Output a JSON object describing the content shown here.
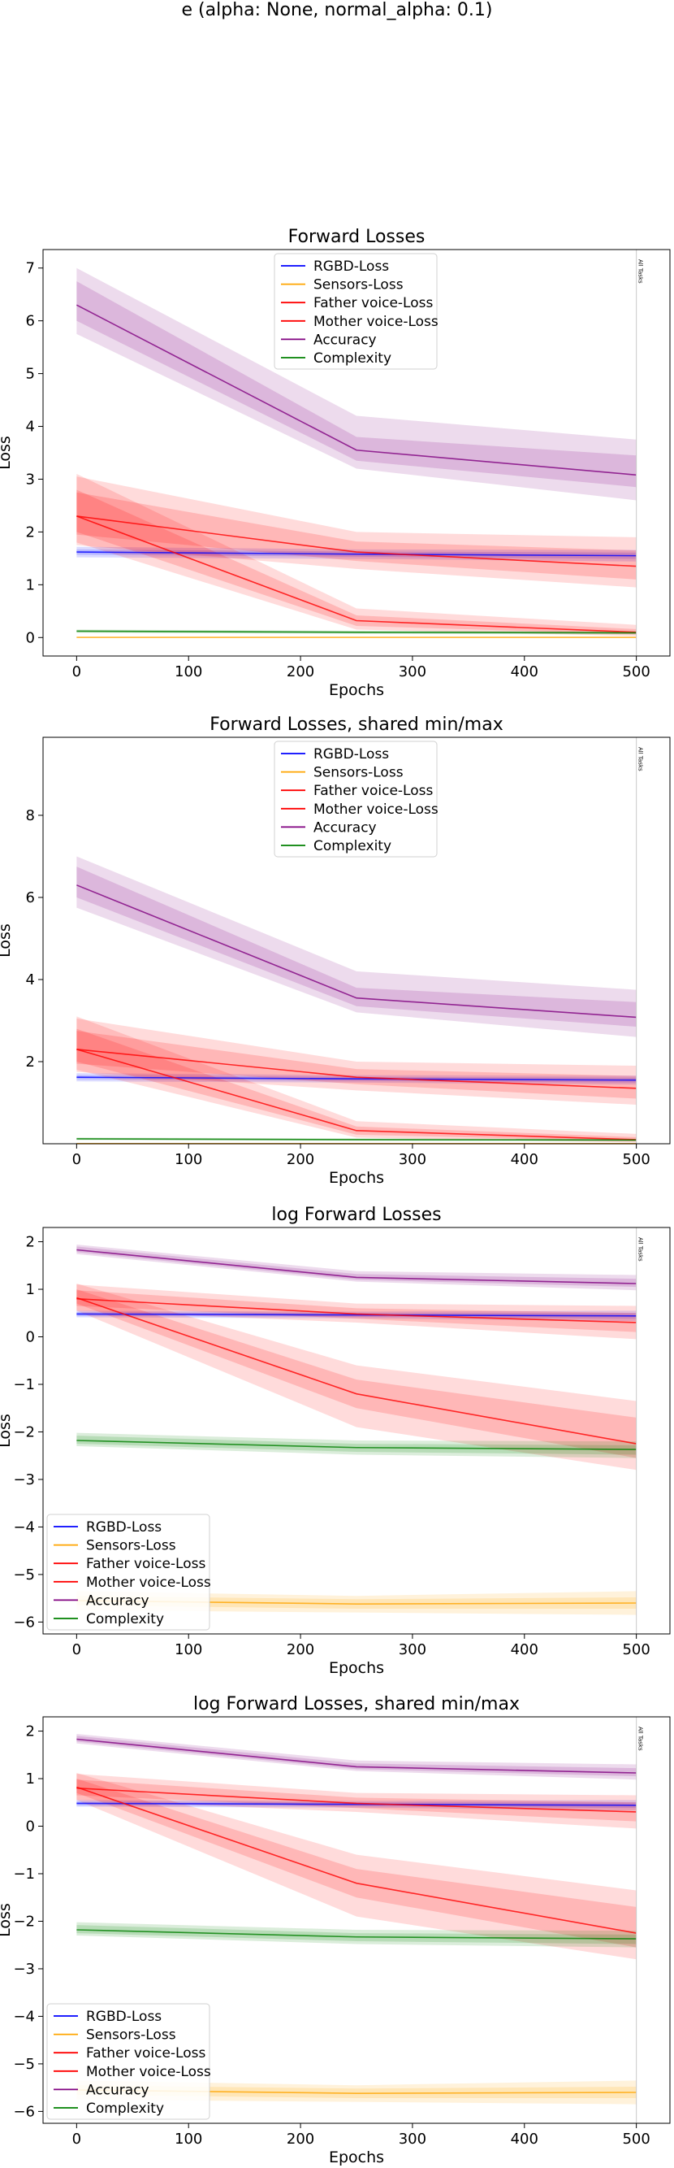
{
  "suptitle": "e (alpha: None, normal_alpha: 0.1)",
  "chart_data": [
    {
      "type": "line",
      "title": "Forward Losses",
      "xlabel": "Epochs",
      "ylabel": "Loss",
      "xlim": [
        -30,
        530
      ],
      "ylim": [
        -0.35,
        7.35
      ],
      "xticks": [
        0,
        100,
        200,
        300,
        400,
        500
      ],
      "yticks": [
        0,
        1,
        2,
        3,
        4,
        5,
        6,
        7
      ],
      "legend_position": "upper-center",
      "vline": {
        "x": 500,
        "label": "All Tasks"
      },
      "x": [
        0,
        250,
        500
      ],
      "series": [
        {
          "name": "RGBD-Loss",
          "color": "#0000ff",
          "values": [
            1.62,
            1.58,
            1.55
          ],
          "band_inner": [
            [
              1.57,
              1.67
            ],
            [
              1.53,
              1.63
            ],
            [
              1.49,
              1.61
            ]
          ],
          "band_outer": [
            [
              1.52,
              1.72
            ],
            [
              1.49,
              1.67
            ],
            [
              1.44,
              1.66
            ]
          ]
        },
        {
          "name": "Sensors-Loss",
          "color": "#ffa500",
          "values": [
            0.003,
            0.003,
            0.003
          ],
          "band_inner": [
            [
              0.002,
              0.004
            ],
            [
              0.002,
              0.004
            ],
            [
              0.002,
              0.004
            ]
          ],
          "band_outer": [
            [
              0.001,
              0.005
            ],
            [
              0.001,
              0.005
            ],
            [
              0.001,
              0.005
            ]
          ]
        },
        {
          "name": "Father voice-Loss",
          "color": "#ff0000",
          "values": [
            2.3,
            1.62,
            1.35
          ],
          "band_inner": [
            [
              1.95,
              2.75
            ],
            [
              1.45,
              1.82
            ],
            [
              1.1,
              1.65
            ]
          ],
          "band_outer": [
            [
              1.75,
              3.05
            ],
            [
              1.3,
              2.0
            ],
            [
              0.95,
              1.9
            ]
          ]
        },
        {
          "name": "Mother voice-Loss",
          "color": "#ff0000",
          "values": [
            2.3,
            0.32,
            0.1
          ],
          "band_inner": [
            [
              2.0,
              2.8
            ],
            [
              0.22,
              0.42
            ],
            [
              0.06,
              0.16
            ]
          ],
          "band_outer": [
            [
              1.8,
              3.1
            ],
            [
              0.15,
              0.55
            ],
            [
              0.03,
              0.24
            ]
          ]
        },
        {
          "name": "Accuracy",
          "color": "#800080",
          "values": [
            6.3,
            3.55,
            3.08
          ],
          "band_inner": [
            [
              6.0,
              6.75
            ],
            [
              3.35,
              3.8
            ],
            [
              2.85,
              3.45
            ]
          ],
          "band_outer": [
            [
              5.75,
              7.0
            ],
            [
              3.2,
              4.2
            ],
            [
              2.6,
              3.75
            ]
          ]
        },
        {
          "name": "Complexity",
          "color": "#008000",
          "values": [
            0.12,
            0.1,
            0.09
          ],
          "band_inner": [
            [
              0.1,
              0.14
            ],
            [
              0.08,
              0.12
            ],
            [
              0.07,
              0.11
            ]
          ],
          "band_outer": [
            [
              0.09,
              0.15
            ],
            [
              0.07,
              0.13
            ],
            [
              0.06,
              0.12
            ]
          ]
        }
      ]
    },
    {
      "type": "line",
      "title": "Forward Losses, shared min/max",
      "xlabel": "Epochs",
      "ylabel": "Loss",
      "xlim": [
        -30,
        530
      ],
      "ylim": [
        0,
        9.9
      ],
      "xticks": [
        0,
        100,
        200,
        300,
        400,
        500
      ],
      "yticks": [
        2,
        4,
        6,
        8
      ],
      "legend_position": "upper-center",
      "vline": {
        "x": 500,
        "label": "All Tasks"
      },
      "x": [
        0,
        250,
        500
      ],
      "series": [
        {
          "name": "RGBD-Loss",
          "color": "#0000ff",
          "values": [
            1.62,
            1.58,
            1.55
          ],
          "band_inner": [
            [
              1.57,
              1.67
            ],
            [
              1.53,
              1.63
            ],
            [
              1.49,
              1.61
            ]
          ],
          "band_outer": [
            [
              1.52,
              1.72
            ],
            [
              1.49,
              1.67
            ],
            [
              1.44,
              1.66
            ]
          ]
        },
        {
          "name": "Sensors-Loss",
          "color": "#ffa500",
          "values": [
            0.003,
            0.003,
            0.003
          ],
          "band_inner": [
            [
              0.002,
              0.004
            ],
            [
              0.002,
              0.004
            ],
            [
              0.002,
              0.004
            ]
          ],
          "band_outer": [
            [
              0.001,
              0.005
            ],
            [
              0.001,
              0.005
            ],
            [
              0.001,
              0.005
            ]
          ]
        },
        {
          "name": "Father voice-Loss",
          "color": "#ff0000",
          "values": [
            2.3,
            1.62,
            1.35
          ],
          "band_inner": [
            [
              1.95,
              2.75
            ],
            [
              1.45,
              1.82
            ],
            [
              1.1,
              1.65
            ]
          ],
          "band_outer": [
            [
              1.75,
              3.05
            ],
            [
              1.3,
              2.0
            ],
            [
              0.95,
              1.9
            ]
          ]
        },
        {
          "name": "Mother voice-Loss",
          "color": "#ff0000",
          "values": [
            2.3,
            0.32,
            0.1
          ],
          "band_inner": [
            [
              2.0,
              2.8
            ],
            [
              0.22,
              0.42
            ],
            [
              0.06,
              0.16
            ]
          ],
          "band_outer": [
            [
              1.8,
              3.1
            ],
            [
              0.15,
              0.55
            ],
            [
              0.03,
              0.24
            ]
          ]
        },
        {
          "name": "Accuracy",
          "color": "#800080",
          "values": [
            6.3,
            3.55,
            3.08
          ],
          "band_inner": [
            [
              6.0,
              6.75
            ],
            [
              3.35,
              3.8
            ],
            [
              2.85,
              3.45
            ]
          ],
          "band_outer": [
            [
              5.75,
              7.0
            ],
            [
              3.2,
              4.2
            ],
            [
              2.6,
              3.75
            ]
          ]
        },
        {
          "name": "Complexity",
          "color": "#008000",
          "values": [
            0.12,
            0.1,
            0.09
          ],
          "band_inner": [
            [
              0.1,
              0.14
            ],
            [
              0.08,
              0.12
            ],
            [
              0.07,
              0.11
            ]
          ],
          "band_outer": [
            [
              0.09,
              0.15
            ],
            [
              0.07,
              0.13
            ],
            [
              0.06,
              0.12
            ]
          ]
        }
      ]
    },
    {
      "type": "line",
      "title": "log Forward Losses",
      "xlabel": "Epochs",
      "ylabel": "Loss",
      "xlim": [
        -30,
        530
      ],
      "ylim": [
        -6.25,
        2.3
      ],
      "xticks": [
        0,
        100,
        200,
        300,
        400,
        500
      ],
      "yticks": [
        -6,
        -5,
        -4,
        -3,
        -2,
        -1,
        0,
        1,
        2
      ],
      "legend_position": "lower-left",
      "vline": {
        "x": 500,
        "label": "All Tasks"
      },
      "x": [
        0,
        250,
        500
      ],
      "series": [
        {
          "name": "RGBD-Loss",
          "color": "#0000ff",
          "values": [
            0.48,
            0.46,
            0.44
          ],
          "band_inner": [
            [
              0.44,
              0.52
            ],
            [
              0.42,
              0.5
            ],
            [
              0.38,
              0.5
            ]
          ],
          "band_outer": [
            [
              0.41,
              0.55
            ],
            [
              0.39,
              0.53
            ],
            [
              0.33,
              0.55
            ]
          ]
        },
        {
          "name": "Sensors-Loss",
          "color": "#ffa500",
          "values": [
            -5.55,
            -5.62,
            -5.6
          ],
          "band_inner": [
            [
              -5.65,
              -5.45
            ],
            [
              -5.72,
              -5.52
            ],
            [
              -5.72,
              -5.48
            ]
          ],
          "band_outer": [
            [
              -5.75,
              -5.35
            ],
            [
              -5.8,
              -5.45
            ],
            [
              -5.85,
              -5.35
            ]
          ]
        },
        {
          "name": "Father voice-Loss",
          "color": "#ff0000",
          "values": [
            0.8,
            0.48,
            0.3
          ],
          "band_inner": [
            [
              0.65,
              0.98
            ],
            [
              0.38,
              0.6
            ],
            [
              0.1,
              0.5
            ]
          ],
          "band_outer": [
            [
              0.55,
              1.1
            ],
            [
              0.3,
              0.7
            ],
            [
              -0.05,
              0.65
            ]
          ]
        },
        {
          "name": "Mother voice-Loss",
          "color": "#ff0000",
          "values": [
            0.82,
            -1.2,
            -2.25
          ],
          "band_inner": [
            [
              0.7,
              1.0
            ],
            [
              -1.5,
              -0.9
            ],
            [
              -2.55,
              -1.7
            ]
          ],
          "band_outer": [
            [
              0.55,
              1.12
            ],
            [
              -1.9,
              -0.6
            ],
            [
              -2.8,
              -1.35
            ]
          ]
        },
        {
          "name": "Accuracy",
          "color": "#800080",
          "values": [
            1.83,
            1.25,
            1.12
          ],
          "band_inner": [
            [
              1.78,
              1.9
            ],
            [
              1.2,
              1.32
            ],
            [
              1.05,
              1.22
            ]
          ],
          "band_outer": [
            [
              1.74,
              1.94
            ],
            [
              1.16,
              1.38
            ],
            [
              0.98,
              1.3
            ]
          ]
        },
        {
          "name": "Complexity",
          "color": "#008000",
          "values": [
            -2.18,
            -2.33,
            -2.37
          ],
          "band_inner": [
            [
              -2.25,
              -2.08
            ],
            [
              -2.42,
              -2.25
            ],
            [
              -2.48,
              -2.28
            ]
          ],
          "band_outer": [
            [
              -2.3,
              -2.02
            ],
            [
              -2.48,
              -2.18
            ],
            [
              -2.55,
              -2.2
            ]
          ]
        }
      ]
    },
    {
      "type": "line",
      "title": "log Forward Losses, shared min/max",
      "xlabel": "Epochs",
      "ylabel": "Loss",
      "xlim": [
        -30,
        530
      ],
      "ylim": [
        -6.25,
        2.3
      ],
      "xticks": [
        0,
        100,
        200,
        300,
        400,
        500
      ],
      "yticks": [
        -6,
        -5,
        -4,
        -3,
        -2,
        -1,
        0,
        1,
        2
      ],
      "legend_position": "lower-left",
      "vline": {
        "x": 500,
        "label": "All Tasks"
      },
      "x": [
        0,
        250,
        500
      ],
      "series": [
        {
          "name": "RGBD-Loss",
          "color": "#0000ff",
          "values": [
            0.48,
            0.46,
            0.44
          ],
          "band_inner": [
            [
              0.44,
              0.52
            ],
            [
              0.42,
              0.5
            ],
            [
              0.38,
              0.5
            ]
          ],
          "band_outer": [
            [
              0.41,
              0.55
            ],
            [
              0.39,
              0.53
            ],
            [
              0.33,
              0.55
            ]
          ]
        },
        {
          "name": "Sensors-Loss",
          "color": "#ffa500",
          "values": [
            -5.55,
            -5.62,
            -5.6
          ],
          "band_inner": [
            [
              -5.65,
              -5.45
            ],
            [
              -5.72,
              -5.52
            ],
            [
              -5.72,
              -5.48
            ]
          ],
          "band_outer": [
            [
              -5.75,
              -5.35
            ],
            [
              -5.8,
              -5.45
            ],
            [
              -5.85,
              -5.35
            ]
          ]
        },
        {
          "name": "Father voice-Loss",
          "color": "#ff0000",
          "values": [
            0.8,
            0.48,
            0.3
          ],
          "band_inner": [
            [
              0.65,
              0.98
            ],
            [
              0.38,
              0.6
            ],
            [
              0.1,
              0.5
            ]
          ],
          "band_outer": [
            [
              0.55,
              1.1
            ],
            [
              0.3,
              0.7
            ],
            [
              -0.05,
              0.65
            ]
          ]
        },
        {
          "name": "Mother voice-Loss",
          "color": "#ff0000",
          "values": [
            0.82,
            -1.2,
            -2.25
          ],
          "band_inner": [
            [
              0.7,
              1.0
            ],
            [
              -1.5,
              -0.9
            ],
            [
              -2.55,
              -1.7
            ]
          ],
          "band_outer": [
            [
              0.55,
              1.12
            ],
            [
              -1.9,
              -0.6
            ],
            [
              -2.8,
              -1.35
            ]
          ]
        },
        {
          "name": "Accuracy",
          "color": "#800080",
          "values": [
            1.83,
            1.25,
            1.12
          ],
          "band_inner": [
            [
              1.78,
              1.9
            ],
            [
              1.2,
              1.32
            ],
            [
              1.05,
              1.22
            ]
          ],
          "band_outer": [
            [
              1.74,
              1.94
            ],
            [
              1.16,
              1.38
            ],
            [
              0.98,
              1.3
            ]
          ]
        },
        {
          "name": "Complexity",
          "color": "#008000",
          "values": [
            -2.18,
            -2.33,
            -2.37
          ],
          "band_inner": [
            [
              -2.25,
              -2.08
            ],
            [
              -2.42,
              -2.25
            ],
            [
              -2.48,
              -2.28
            ]
          ],
          "band_outer": [
            [
              -2.3,
              -2.02
            ],
            [
              -2.48,
              -2.18
            ],
            [
              -2.55,
              -2.2
            ]
          ]
        }
      ]
    }
  ]
}
